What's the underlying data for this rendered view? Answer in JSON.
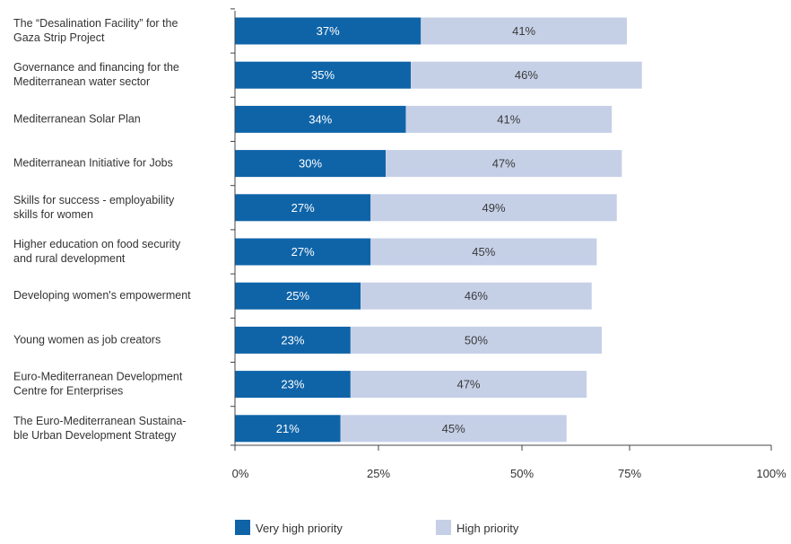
{
  "chart_data": {
    "type": "bar",
    "orientation": "horizontal",
    "stacked": true,
    "categories": [
      [
        "The “Desalination Facility” for the",
        "Gaza Strip Project"
      ],
      [
        "Governance and financing for the",
        "Mediterranean water sector"
      ],
      [
        "Mediterranean Solar Plan"
      ],
      [
        "Mediterranean Initiative for Jobs"
      ],
      [
        "Skills for success - employability",
        "skills for women"
      ],
      [
        "Higher education on food security",
        "and rural development"
      ],
      [
        "Developing women's empowerment"
      ],
      [
        "Young women as job creators"
      ],
      [
        "Euro-Mediterranean Development",
        "Centre for Enterprises"
      ],
      [
        "The Euro-Mediterranean Sustaina-",
        "ble Urban Development Strategy"
      ]
    ],
    "series": [
      {
        "name": "Very high priority",
        "color": "#0f64a8",
        "values": [
          37,
          35,
          34,
          30,
          27,
          27,
          25,
          23,
          23,
          21
        ]
      },
      {
        "name": "High priority",
        "color": "#c5d0e7",
        "values": [
          41,
          46,
          41,
          47,
          49,
          45,
          46,
          50,
          47,
          45
        ]
      }
    ],
    "data_labels": [
      [
        "37%",
        "35%",
        "34%",
        "30%",
        "27%",
        "27%",
        "25%",
        "23%",
        "23%",
        "21%"
      ],
      [
        "41%",
        "46%",
        "41%",
        "47%",
        "49%",
        "45%",
        "46%",
        "50%",
        "47%",
        "45%"
      ]
    ],
    "xlim": [
      0,
      100
    ],
    "xticks": [
      0,
      25,
      50,
      75,
      100
    ],
    "xtick_labels": [
      "0%",
      "25%",
      "50%",
      "75%",
      "100%"
    ],
    "grid": false,
    "legend_position": "bottom-left",
    "title": "",
    "xlabel": "",
    "ylabel": ""
  }
}
